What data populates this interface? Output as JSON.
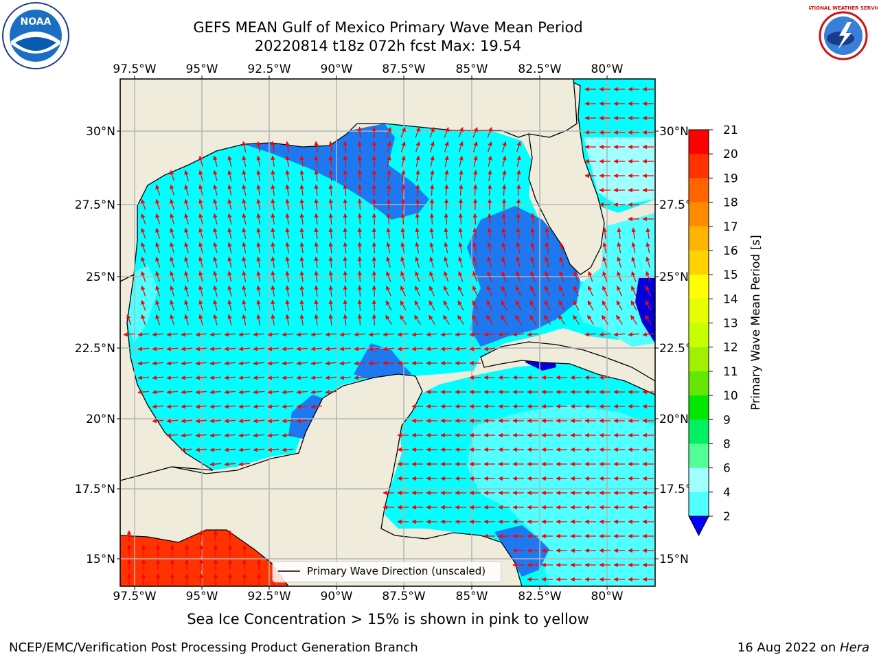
{
  "header": {
    "title_line1": "GEFS MEAN Gulf of Mexico Primary Wave Mean Period",
    "title_line2": "20220814 t18z 072h fcst   Max: 19.54"
  },
  "logos": {
    "left": "NOAA",
    "right": "NATIONAL WEATHER SERVICE"
  },
  "map": {
    "lon_ticks": [
      "97.5°W",
      "95°W",
      "92.5°W",
      "90°W",
      "87.5°W",
      "85°W",
      "82.5°W",
      "80°W"
    ],
    "lat_ticks": [
      "30°N",
      "27.5°N",
      "25°N",
      "22.5°N",
      "20°N",
      "17.5°N",
      "15°N"
    ],
    "legend_label": "Primary Wave Direction (unscaled)",
    "colors": {
      "land": "#efecdc",
      "water_2_4": "#1e78f0",
      "water_4_6": "#00ffff",
      "water_6_8": "#50ffff",
      "water_8_9": "#a0ffff",
      "water_lt2": "#0000dc",
      "high_period": "#ff3200",
      "arrow": "#ff0000",
      "grid": "#b4b4b4"
    }
  },
  "colorbar": {
    "label": "Primary Wave Mean Period [s]",
    "tick_labels": [
      "21",
      "20",
      "19",
      "18",
      "17",
      "16",
      "15",
      "14",
      "13",
      "12",
      "11",
      "10",
      "9",
      "8",
      "6",
      "4",
      "2"
    ],
    "colors": [
      "#ff0000",
      "#ff3200",
      "#ff6400",
      "#ff8c00",
      "#ffb400",
      "#ffd200",
      "#ffff00",
      "#e6ff00",
      "#c8ff00",
      "#a0f000",
      "#64e600",
      "#00e600",
      "#00f064",
      "#50ff96",
      "#a0ffff",
      "#50ffff",
      "#00ffff",
      "#1e78f0",
      "#0000dc"
    ]
  },
  "footer": {
    "note": "Sea Ice Concentration > 15% is shown in pink to yellow",
    "left": "NCEP/EMC/Verification Post Processing Product Generation Branch",
    "right_date": "16 Aug 2022 on ",
    "right_machine": "Hera"
  }
}
